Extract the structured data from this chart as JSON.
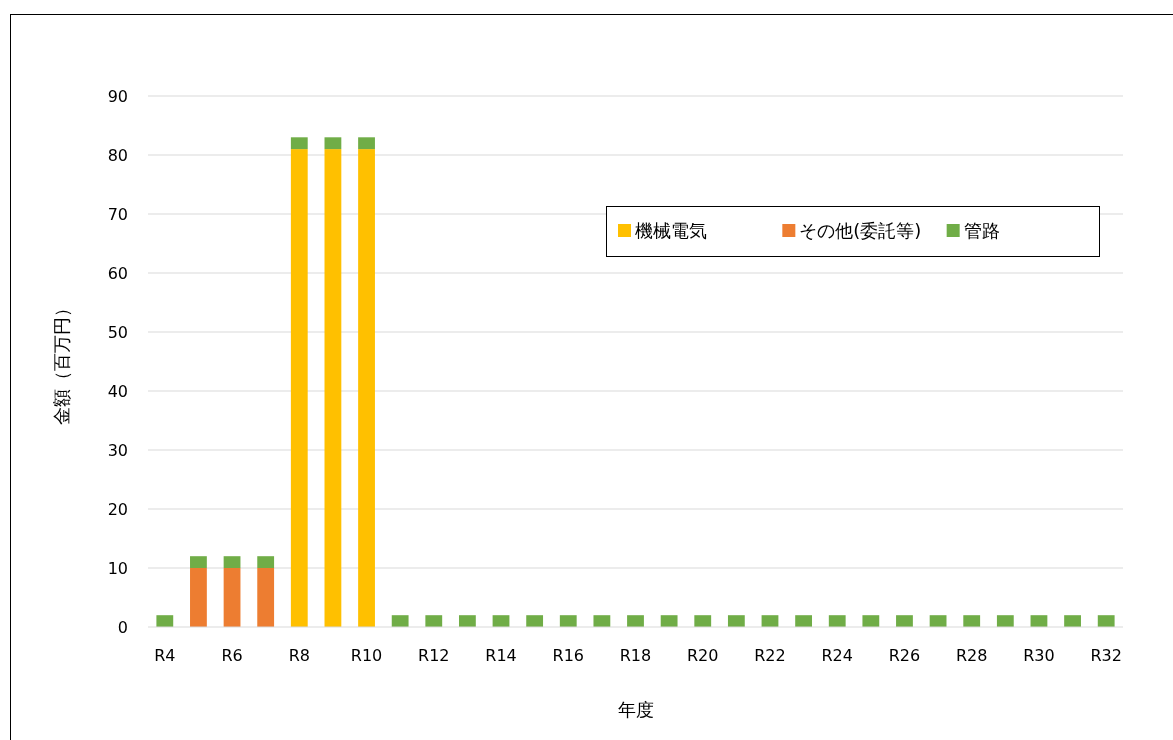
{
  "chart_data": {
    "type": "bar",
    "stacked": true,
    "xlabel": "年度",
    "ylabel": "金額（百万円）",
    "categories": [
      "R4",
      null,
      "R6",
      null,
      "R8",
      null,
      "R10",
      null,
      "R12",
      null,
      "R14",
      null,
      "R16",
      null,
      "R18",
      null,
      "R20",
      null,
      "R22",
      null,
      "R24",
      null,
      "R26",
      null,
      "R28",
      null,
      "R30",
      null,
      "R32"
    ],
    "series": [
      {
        "name": "機械電気",
        "color": "#ffc000",
        "values": [
          0,
          0,
          0,
          0,
          81,
          81,
          81,
          0,
          0,
          0,
          0,
          0,
          0,
          0,
          0,
          0,
          0,
          0,
          0,
          0,
          0,
          0,
          0,
          0,
          0,
          0,
          0,
          0,
          0
        ]
      },
      {
        "name": "その他(委託等)",
        "color": "#ed7d31",
        "values": [
          0,
          10,
          10,
          10,
          0,
          0,
          0,
          0,
          0,
          0,
          0,
          0,
          0,
          0,
          0,
          0,
          0,
          0,
          0,
          0,
          0,
          0,
          0,
          0,
          0,
          0,
          0,
          0,
          0
        ]
      },
      {
        "name": "管路",
        "color": "#70ad47",
        "values": [
          2,
          2,
          2,
          2,
          2,
          2,
          2,
          2,
          2,
          2,
          2,
          2,
          2,
          2,
          2,
          2,
          2,
          2,
          2,
          2,
          2,
          2,
          2,
          2,
          2,
          2,
          2,
          2,
          2
        ]
      }
    ],
    "ylim": [
      0,
      90
    ],
    "yticks": [
      0,
      10,
      20,
      30,
      40,
      50,
      60,
      70,
      80,
      90
    ],
    "grid": "y",
    "legend": "top right"
  }
}
